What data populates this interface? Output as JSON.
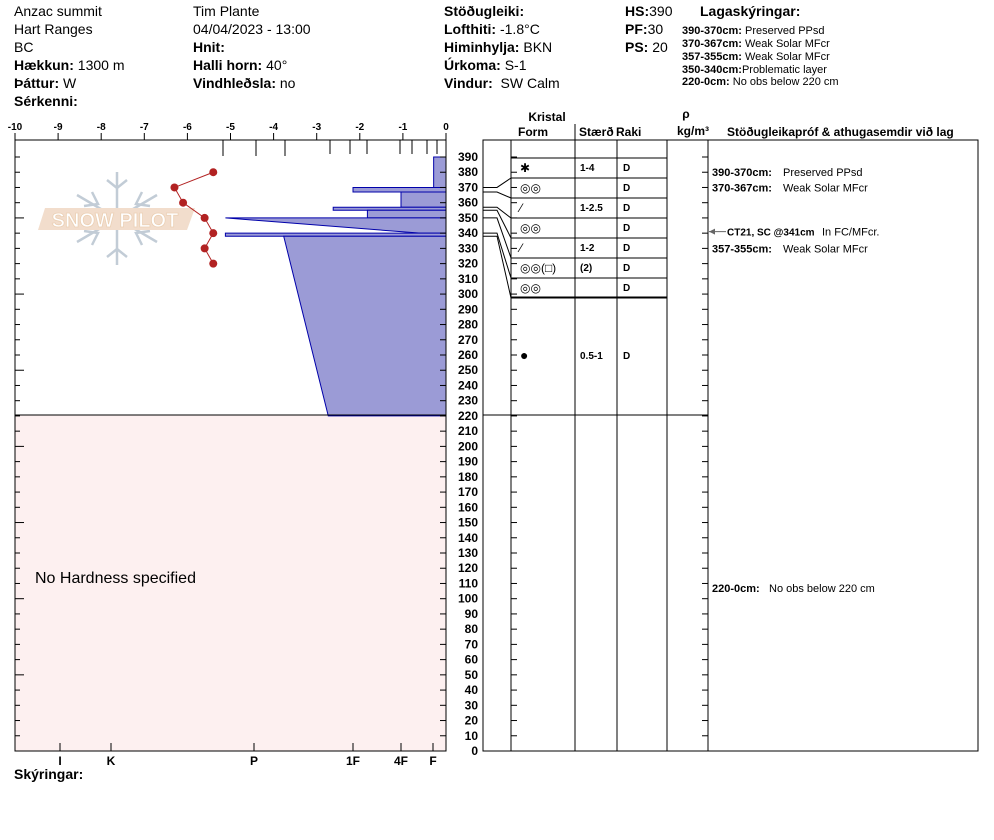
{
  "header": {
    "location": "Anzac summit",
    "range": "Hart Ranges",
    "state": "BC",
    "elevation_label": "Hækkun:",
    "elevation": "1300 m",
    "aspect_label": "Þáttur:",
    "aspect": "W",
    "specifics_label": "Sérkenni:",
    "observer": "Tim Plante",
    "datetime": "04/04/2023 - 13:00",
    "coords_label": "Hnit:",
    "slope_label": "Halli horn:",
    "slope": "40°",
    "wind_loading_label": "Vindhleðsla:",
    "wind_loading": "no",
    "stability_label": "Stöðugleiki:",
    "air_temp_label": "Lofthiti:",
    "air_temp": "-1.8°C",
    "sky_label": "Himinhylja:",
    "sky": "BKN",
    "precip_label": "Úrkoma:",
    "precip": "S-1",
    "wind_label": "Vindur:",
    "wind": "SW Calm",
    "hs_label": "HS:",
    "hs": "390",
    "pf_label": "PF:",
    "pf": "30",
    "ps_label": "PS:",
    "ps": "20"
  },
  "legend": {
    "title": "Lagaskýringar:",
    "items": [
      {
        "range": "390-370cm:",
        "text": "Preserved PPsd"
      },
      {
        "range": "370-367cm:",
        "text": "Weak Solar MFcr"
      },
      {
        "range": "357-355cm:",
        "text": "Weak Solar MFcr"
      },
      {
        "range": "350-340cm:",
        "text": "Problematic layer"
      },
      {
        "range": "220-0cm:",
        "text": "No obs below 220 cm"
      }
    ]
  },
  "table_headers": {
    "crystal": "Kristal",
    "form": "Form",
    "size": "Stærð",
    "moisture": "Raki",
    "rho": "ρ",
    "density_unit": "kg/m³",
    "comments": "Stöðugleikapróf & athugasemdir við lag"
  },
  "no_hardness": "No Hardness specified",
  "footer_label": "Skýringar:",
  "logo_text": "SNOW PILOT",
  "colors": {
    "hardness_fill": "#9b9bd6",
    "hardness_stroke": "#0000aa",
    "temp": "#b22222",
    "no_obs_bg": "#fdf0f0"
  },
  "chart_data": {
    "type": "snow-profile",
    "temp_axis": {
      "ticks": [
        -10,
        -9,
        -8,
        -7,
        -6,
        -5,
        -4,
        -3,
        -2,
        -1,
        0
      ],
      "range": [
        -10,
        0
      ]
    },
    "depth_axis": {
      "range": [
        0,
        390
      ],
      "step": 10
    },
    "hardness_axis": {
      "labels": [
        "I",
        "K",
        "P",
        "1F",
        "4F",
        "F"
      ]
    },
    "temperature_profile": [
      {
        "depth": 380,
        "temp": -5.4
      },
      {
        "depth": 370,
        "temp": -6.3
      },
      {
        "depth": 360,
        "temp": -6.1
      },
      {
        "depth": 350,
        "temp": -5.6
      },
      {
        "depth": 340,
        "temp": -5.4
      },
      {
        "depth": 330,
        "temp": -5.6
      },
      {
        "depth": 320,
        "temp": -5.4
      }
    ],
    "hardness_layers": [
      {
        "top": 390,
        "bottom": 370,
        "h_top": 0.95,
        "h_bottom": 0.95
      },
      {
        "top": 370,
        "bottom": 367,
        "h_top": 3.0,
        "h_bottom": 3.0
      },
      {
        "top": 367,
        "bottom": 357,
        "h_top": 2.0,
        "h_bottom": 2.0
      },
      {
        "top": 357,
        "bottom": 355,
        "h_top": 3.2,
        "h_bottom": 3.2
      },
      {
        "top": 355,
        "bottom": 350,
        "h_top": 2.7,
        "h_bottom": 2.7
      },
      {
        "top": 350,
        "bottom": 340,
        "h_top": 4.2,
        "h_bottom": 1.4
      },
      {
        "top": 340,
        "bottom": 338,
        "h_top": 4.2,
        "h_bottom": 4.2
      },
      {
        "top": 338,
        "bottom": 220,
        "h_top": 3.7,
        "h_bottom": 3.25
      }
    ],
    "layers": [
      {
        "top": 390,
        "bottom": 370,
        "form": "✱",
        "size": "1-4",
        "moisture": "D"
      },
      {
        "top": 370,
        "bottom": 367,
        "form": "◎◎",
        "size": "",
        "moisture": "D"
      },
      {
        "top": 367,
        "bottom": 357,
        "form": "⁄",
        "size": "1-2.5",
        "moisture": "D"
      },
      {
        "top": 357,
        "bottom": 355,
        "form": "◎◎",
        "size": "",
        "moisture": "D"
      },
      {
        "top": 355,
        "bottom": 350,
        "form": "⁄",
        "size": "1-2",
        "moisture": "D"
      },
      {
        "top": 350,
        "bottom": 340,
        "form": "◎◎(□)",
        "size": "(2)",
        "moisture": "D"
      },
      {
        "top": 340,
        "bottom": 338,
        "form": "◎◎",
        "size": "",
        "moisture": "D"
      },
      {
        "top": 338,
        "bottom": 220,
        "form": "●",
        "size": "0.5-1",
        "moisture": "D"
      }
    ],
    "comments": [
      {
        "depth": 380,
        "range": "390-370cm:",
        "text": "Preserved PPsd"
      },
      {
        "depth": 370,
        "range": "370-367cm:",
        "text": "Weak Solar MFcr"
      },
      {
        "depth": 341,
        "range": "CT21, SC @341cm",
        "text": "In FC/MFcr.",
        "arrow": true
      },
      {
        "depth": 330,
        "range": "357-355cm:",
        "text": "Weak Solar MFcr"
      },
      {
        "depth": 107,
        "range": "220-0cm:",
        "text": "No obs below 220 cm"
      }
    ]
  }
}
